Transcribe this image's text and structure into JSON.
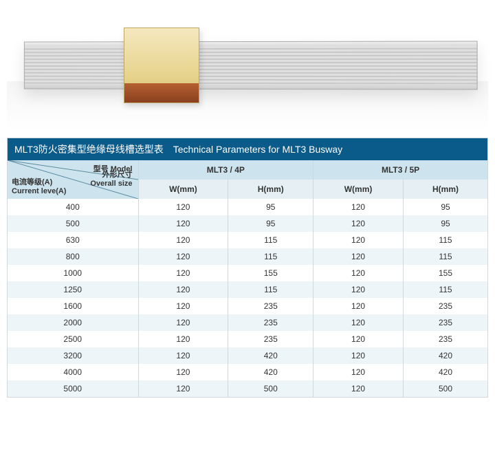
{
  "title": "MLT3防火密集型绝缘母线槽选型表　Technical Parameters for MLT3 Busway",
  "header": {
    "model_label": "型号 Model",
    "size_label": "外形尺寸\nOverall size",
    "current_label": "电流等级(A)\nCurrent leve(A)",
    "group_4p": "MLT3 / 4P",
    "group_5p": "MLT3 / 5P",
    "w_label": "W(mm)",
    "h_label": "H(mm)"
  },
  "style": {
    "title_bg": "#0a5a8a",
    "title_color": "#ffffff",
    "header_bg1": "#cde4ee",
    "header_bg2": "#e6f0f4",
    "row_even_bg": "#eef5f8",
    "row_odd_bg": "#ffffff",
    "border_color": "#d0d8dc",
    "font_size_title": 14,
    "font_size_body": 12
  },
  "columns": [
    "current",
    "w4",
    "h4",
    "w5",
    "h5"
  ],
  "rows": [
    {
      "current": "400",
      "w4": "120",
      "h4": "95",
      "w5": "120",
      "h5": "95"
    },
    {
      "current": "500",
      "w4": "120",
      "h4": "95",
      "w5": "120",
      "h5": "95"
    },
    {
      "current": "630",
      "w4": "120",
      "h4": "115",
      "w5": "120",
      "h5": "115"
    },
    {
      "current": "800",
      "w4": "120",
      "h4": "115",
      "w5": "120",
      "h5": "115"
    },
    {
      "current": "1000",
      "w4": "120",
      "h4": "155",
      "w5": "120",
      "h5": "155"
    },
    {
      "current": "1250",
      "w4": "120",
      "h4": "115",
      "w5": "120",
      "h5": "115"
    },
    {
      "current": "1600",
      "w4": "120",
      "h4": "235",
      "w5": "120",
      "h5": "235"
    },
    {
      "current": "2000",
      "w4": "120",
      "h4": "235",
      "w5": "120",
      "h5": "235"
    },
    {
      "current": "2500",
      "w4": "120",
      "h4": "235",
      "w5": "120",
      "h5": "235"
    },
    {
      "current": "3200",
      "w4": "120",
      "h4": "420",
      "w5": "120",
      "h5": "420"
    },
    {
      "current": "4000",
      "w4": "120",
      "h4": "420",
      "w5": "120",
      "h5": "420"
    },
    {
      "current": "5000",
      "w4": "120",
      "h4": "500",
      "w5": "120",
      "h5": "500"
    }
  ]
}
